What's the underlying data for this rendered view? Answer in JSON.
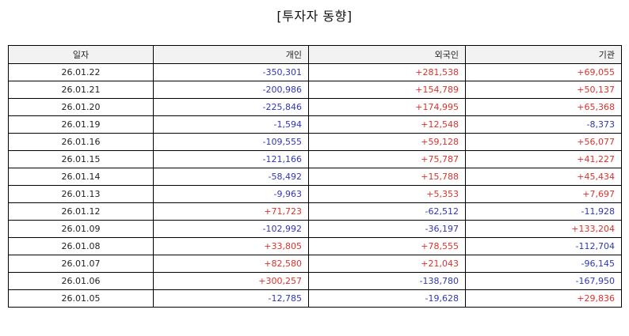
{
  "title": "[투자자 동향]",
  "colors": {
    "positive": "#e0302a",
    "negative": "#2f36b9",
    "header_bg": "#f2f2f2"
  },
  "columns": [
    "일자",
    "개인",
    "외국인",
    "기관"
  ],
  "rows": [
    [
      "26.01.22",
      "-350,301",
      "+281,538",
      "+69,055"
    ],
    [
      "26.01.21",
      "-200,986",
      "+154,789",
      "+50,137"
    ],
    [
      "26.01.20",
      "-225,846",
      "+174,995",
      "+65,368"
    ],
    [
      "26.01.19",
      "-1,594",
      "+12,548",
      "-8,373"
    ],
    [
      "26.01.16",
      "-109,555",
      "+59,128",
      "+56,077"
    ],
    [
      "26.01.15",
      "-121,166",
      "+75,787",
      "+41,227"
    ],
    [
      "26.01.14",
      "-58,492",
      "+15,788",
      "+45,434"
    ],
    [
      "26.01.13",
      "-9,963",
      "+5,353",
      "+7,697"
    ],
    [
      "26.01.12",
      "+71,723",
      "-62,512",
      "-11,928"
    ],
    [
      "26.01.09",
      "-102,992",
      "-36,197",
      "+133,204"
    ],
    [
      "26.01.08",
      "+33,805",
      "+78,555",
      "-112,704"
    ],
    [
      "26.01.07",
      "+82,580",
      "+21,043",
      "-96,145"
    ],
    [
      "26.01.06",
      "+300,257",
      "-138,780",
      "-167,950"
    ],
    [
      "26.01.05",
      "-12,785",
      "-19,628",
      "+29,836"
    ]
  ]
}
